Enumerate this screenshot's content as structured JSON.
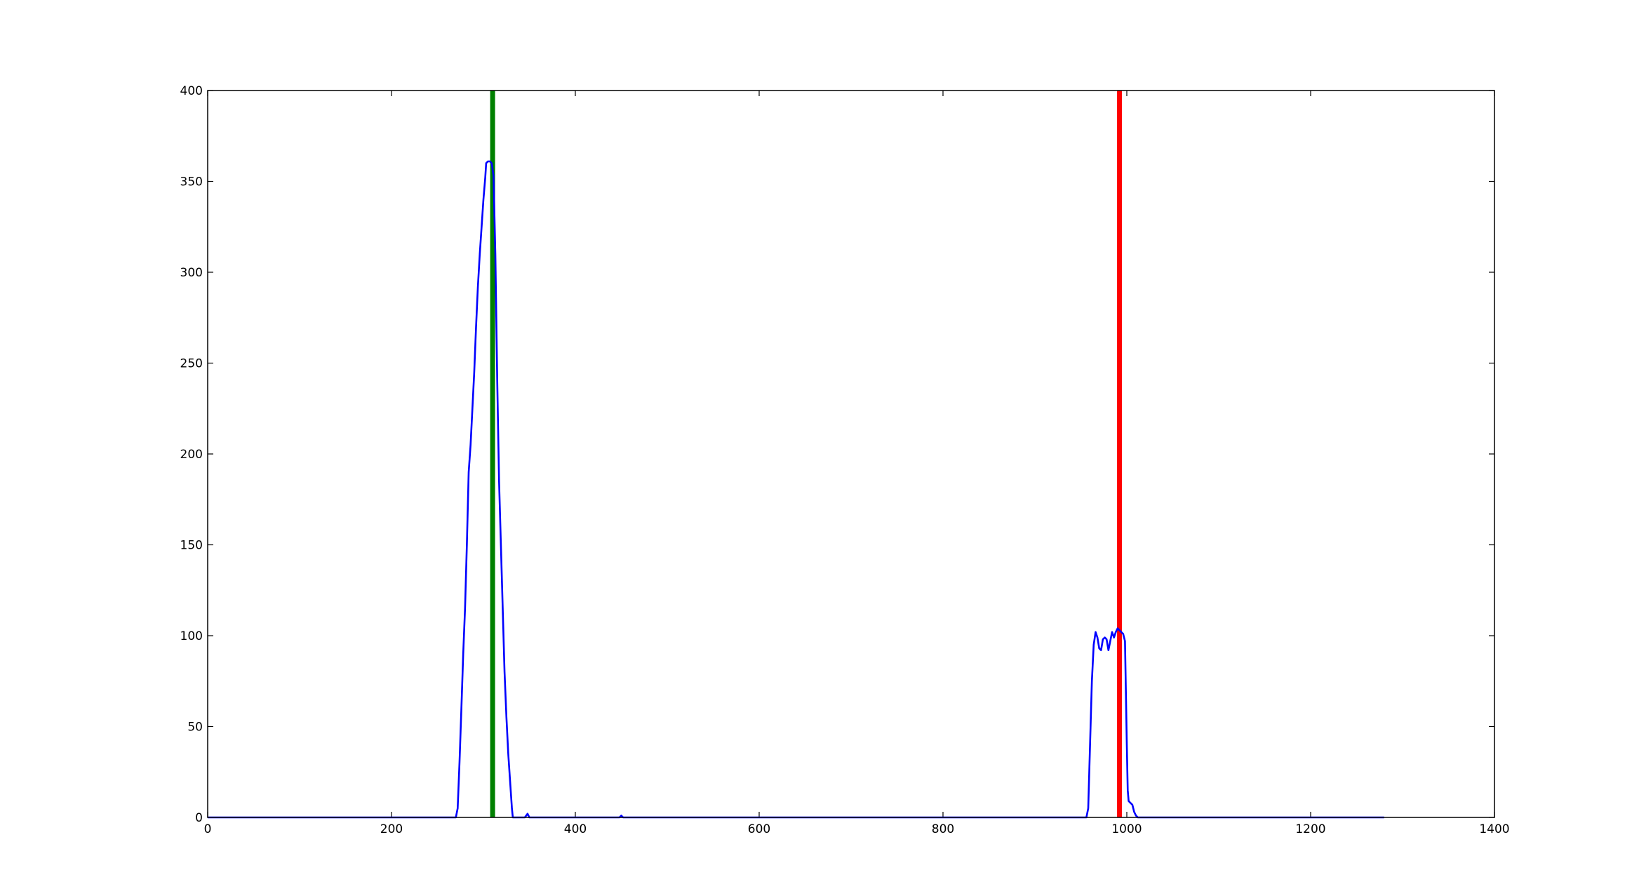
{
  "chart_data": {
    "type": "line",
    "title": "",
    "xlabel": "",
    "ylabel": "",
    "xlim": [
      0,
      1400
    ],
    "ylim": [
      0,
      400
    ],
    "grid": false,
    "x_ticks": [
      "0",
      "200",
      "400",
      "600",
      "800",
      "1000",
      "1200",
      "1400"
    ],
    "y_ticks": [
      "0",
      "50",
      "100",
      "150",
      "200",
      "250",
      "300",
      "350",
      "400"
    ],
    "series": [
      {
        "color": "#0000ff",
        "points": [
          [
            0,
            0
          ],
          [
            270,
            0
          ],
          [
            272,
            5
          ],
          [
            274,
            30
          ],
          [
            276,
            60
          ],
          [
            278,
            90
          ],
          [
            280,
            115
          ],
          [
            282,
            150
          ],
          [
            284,
            190
          ],
          [
            286,
            205
          ],
          [
            288,
            225
          ],
          [
            290,
            245
          ],
          [
            292,
            270
          ],
          [
            294,
            292
          ],
          [
            296,
            310
          ],
          [
            298,
            325
          ],
          [
            300,
            340
          ],
          [
            302,
            352
          ],
          [
            303,
            360
          ],
          [
            305,
            361
          ],
          [
            307,
            361
          ],
          [
            309,
            360
          ],
          [
            311,
            353
          ],
          [
            313,
            310
          ],
          [
            315,
            240
          ],
          [
            317,
            185
          ],
          [
            319,
            150
          ],
          [
            321,
            115
          ],
          [
            323,
            80
          ],
          [
            325,
            55
          ],
          [
            327,
            35
          ],
          [
            329,
            20
          ],
          [
            331,
            5
          ],
          [
            332,
            0
          ],
          [
            345,
            0
          ],
          [
            348,
            2
          ],
          [
            350,
            0
          ],
          [
            448,
            0
          ],
          [
            450,
            1
          ],
          [
            452,
            0
          ],
          [
            956,
            0
          ],
          [
            958,
            5
          ],
          [
            960,
            40
          ],
          [
            962,
            75
          ],
          [
            964,
            95
          ],
          [
            966,
            102
          ],
          [
            968,
            99
          ],
          [
            970,
            93
          ],
          [
            972,
            92
          ],
          [
            974,
            98
          ],
          [
            976,
            99
          ],
          [
            978,
            98
          ],
          [
            980,
            92
          ],
          [
            982,
            97
          ],
          [
            984,
            102
          ],
          [
            986,
            99
          ],
          [
            988,
            102
          ],
          [
            990,
            104
          ],
          [
            992,
            103
          ],
          [
            994,
            102
          ],
          [
            996,
            101
          ],
          [
            998,
            97
          ],
          [
            1000,
            40
          ],
          [
            1001,
            15
          ],
          [
            1002,
            9
          ],
          [
            1004,
            8
          ],
          [
            1006,
            7
          ],
          [
            1008,
            3
          ],
          [
            1010,
            1
          ],
          [
            1012,
            0
          ],
          [
            1280,
            0
          ]
        ]
      }
    ],
    "vertical_lines": [
      {
        "x": 310,
        "color": "#008000"
      },
      {
        "x": 992,
        "color": "#ff0000"
      }
    ]
  }
}
